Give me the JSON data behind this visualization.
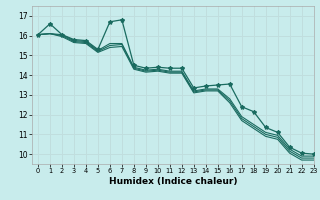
{
  "xlabel": "Humidex (Indice chaleur)",
  "bg_color": "#c8ecec",
  "grid_color": "#c0dede",
  "line_color": "#1a6b60",
  "xlim": [
    -0.5,
    23
  ],
  "ylim": [
    9.5,
    17.5
  ],
  "xtick_labels": [
    "0",
    "1",
    "2",
    "3",
    "4",
    "5",
    "6",
    "7",
    "8",
    "9",
    "10",
    "11",
    "12",
    "13",
    "14",
    "15",
    "16",
    "17",
    "18",
    "19",
    "20",
    "21",
    "22",
    "23"
  ],
  "ytick_values": [
    10,
    11,
    12,
    13,
    14,
    15,
    16,
    17
  ],
  "series_plain": [
    [
      16.05,
      16.1,
      16.05,
      15.75,
      15.7,
      15.25,
      15.6,
      15.6,
      14.4,
      14.25,
      14.3,
      14.2,
      14.2,
      13.2,
      13.3,
      13.3,
      12.8,
      11.9,
      11.5,
      11.1,
      10.95,
      10.25,
      9.9,
      9.9
    ],
    [
      16.05,
      16.1,
      16.0,
      15.7,
      15.65,
      15.2,
      15.5,
      15.55,
      14.35,
      14.2,
      14.25,
      14.15,
      14.15,
      13.15,
      13.25,
      13.25,
      12.7,
      11.8,
      11.4,
      11.0,
      10.85,
      10.15,
      9.8,
      9.8
    ],
    [
      16.05,
      16.1,
      15.95,
      15.65,
      15.6,
      15.15,
      15.4,
      15.45,
      14.3,
      14.15,
      14.2,
      14.1,
      14.1,
      13.1,
      13.2,
      13.2,
      12.6,
      11.7,
      11.3,
      10.9,
      10.75,
      10.05,
      9.7,
      9.7
    ]
  ],
  "series_marked": [
    16.05,
    16.6,
    16.05,
    15.8,
    15.75,
    15.3,
    16.7,
    16.8,
    14.5,
    14.35,
    14.4,
    14.35,
    14.35,
    13.35,
    13.45,
    13.5,
    13.55,
    12.4,
    12.15,
    11.35,
    11.1,
    10.35,
    10.05,
    10.0
  ]
}
